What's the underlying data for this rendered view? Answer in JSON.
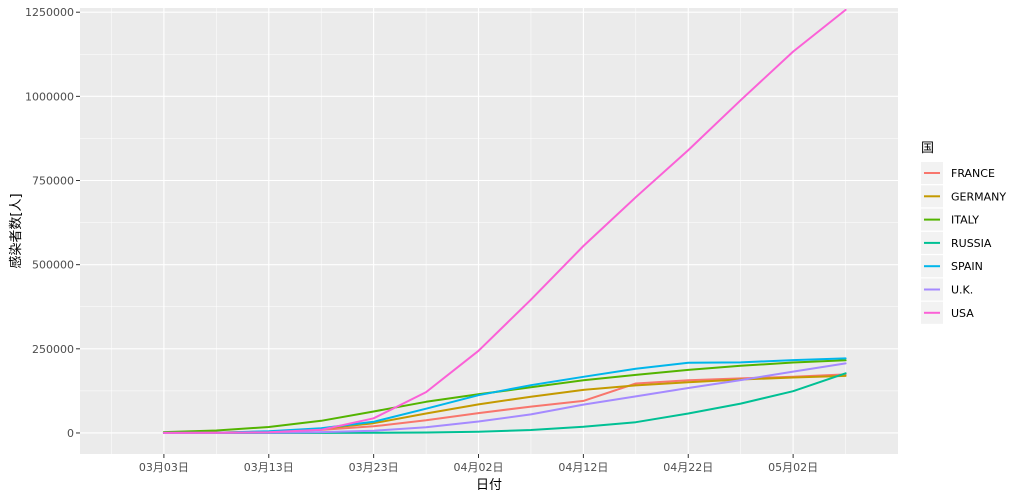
{
  "chart_data": {
    "type": "line",
    "title": "",
    "xlabel": "日付",
    "ylabel": "感染者数[人]",
    "legend_title": "国",
    "legend_position": "right",
    "grid": true,
    "x_tick_labels": [
      "03月03日",
      "03月13日",
      "03月23日",
      "04月02日",
      "04月12日",
      "04月22日",
      "05月02日"
    ],
    "y_tick_labels": [
      "0",
      "250000",
      "500000",
      "750000",
      "1000000",
      "1250000"
    ],
    "x_range": [
      "2020-02-24",
      "2020-05-12"
    ],
    "ylim": [
      -62500,
      1262500
    ],
    "x": [
      "2020-03-03",
      "2020-03-08",
      "2020-03-13",
      "2020-03-18",
      "2020-03-23",
      "2020-03-28",
      "2020-04-02",
      "2020-04-07",
      "2020-04-12",
      "2020-04-17",
      "2020-04-22",
      "2020-04-27",
      "2020-05-02",
      "2020-05-07"
    ],
    "series": [
      {
        "name": "FRANCE",
        "color": "#F8766D",
        "values": [
          200,
          1100,
          3700,
          9000,
          19800,
          37500,
          59100,
          78200,
          95400,
          147000,
          156500,
          162100,
          167000,
          174000
        ]
      },
      {
        "name": "GERMANY",
        "color": "#C49A00",
        "values": [
          200,
          1000,
          3700,
          12300,
          29100,
          57700,
          84800,
          107700,
          127900,
          141400,
          150600,
          158800,
          164800,
          169600
        ]
      },
      {
        "name": "ITALY",
        "color": "#53B400",
        "values": [
          2500,
          7400,
          17700,
          36000,
          63900,
          92500,
          115200,
          135600,
          156400,
          172400,
          187300,
          199400,
          209300,
          215900
        ]
      },
      {
        "name": "RUSSIA",
        "color": "#00C094",
        "values": [
          0,
          0,
          0,
          100,
          400,
          1300,
          3500,
          8700,
          18300,
          32000,
          57900,
          87100,
          124100,
          177200
        ]
      },
      {
        "name": "SPAIN",
        "color": "#00B6EB",
        "values": [
          150,
          700,
          5200,
          13900,
          33100,
          72200,
          112100,
          141900,
          166800,
          190800,
          208400,
          209500,
          216600,
          221400
        ]
      },
      {
        "name": "U.K.",
        "color": "#A58AFF",
        "values": [
          50,
          300,
          800,
          2600,
          6700,
          17100,
          34200,
          55200,
          84300,
          108700,
          133500,
          157100,
          182300,
          206700
        ]
      },
      {
        "name": "USA",
        "color": "#FB61D7",
        "values": [
          100,
          500,
          2200,
          9400,
          43700,
          121500,
          244000,
          396000,
          555300,
          700300,
          840300,
          988500,
          1133000,
          1257000
        ]
      }
    ]
  }
}
